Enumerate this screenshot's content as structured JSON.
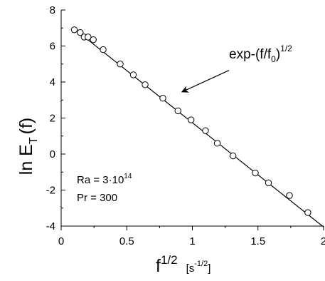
{
  "chart_data": {
    "type": "scatter",
    "title": "",
    "xlabel": {
      "base": "f",
      "sup": "1/2",
      "unit_open": "[s",
      "unit_sup": "-1/2",
      "unit_close": "]"
    },
    "ylabel": {
      "prefix": "ln E",
      "sub": "T",
      "suffix": "(f)"
    },
    "xlim": [
      0,
      2
    ],
    "ylim": [
      -4,
      8
    ],
    "x_ticks": [
      "0",
      "0.5",
      "1",
      "1.5",
      "2"
    ],
    "y_ticks": [
      "-4",
      "-2",
      "0",
      "2",
      "4",
      "6",
      "8"
    ],
    "grid": false,
    "series": [
      {
        "marker": "open-circle",
        "x": [
          0.1,
          0.145,
          0.175,
          0.205,
          0.245,
          0.32,
          0.45,
          0.55,
          0.64,
          0.775,
          0.89,
          0.99,
          1.1,
          1.19,
          1.31,
          1.48,
          1.58,
          1.74,
          1.88
        ],
        "y": [
          6.9,
          6.75,
          6.5,
          6.5,
          6.35,
          5.8,
          5.0,
          4.4,
          3.85,
          3.1,
          2.4,
          1.9,
          1.3,
          0.6,
          -0.1,
          -1.05,
          -1.6,
          -2.3,
          -3.25
        ]
      }
    ],
    "fit_line": {
      "x": [
        0.1,
        2.0
      ],
      "y": [
        6.95,
        -4.05
      ]
    },
    "annotations": {
      "fit_label": {
        "text_prefix": "exp-(f/f",
        "text_sub": "0",
        "text_close": ")",
        "text_sup": "1/2",
        "arrow_tip": [
          0.92,
          3.45
        ],
        "arrow_tail": [
          1.28,
          4.65
        ]
      },
      "params": [
        {
          "text": "Ra = 3·10",
          "sup": "14"
        },
        {
          "text": "Pr = 300",
          "sup": ""
        }
      ]
    },
    "colors": {
      "line": "#000000",
      "marker_fill": "#ffffff",
      "marker_stroke": "#000000"
    }
  }
}
